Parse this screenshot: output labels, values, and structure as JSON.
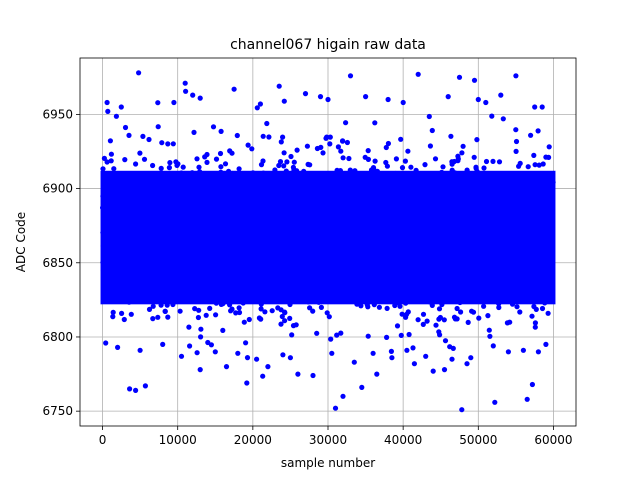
{
  "chart_data": {
    "type": "scatter",
    "title": "channel067 higain raw data",
    "xlabel": "sample number",
    "ylabel": "ADC Code",
    "xlim": [
      -3000,
      63000
    ],
    "ylim": [
      6740,
      6988
    ],
    "xticks": [
      0,
      10000,
      20000,
      30000,
      40000,
      50000,
      60000
    ],
    "yticks": [
      6750,
      6800,
      6850,
      6900,
      6950
    ],
    "grid": true,
    "marker_color": "#0000ff",
    "series": [
      {
        "n_samples": 60000,
        "x_range": [
          0,
          59999
        ],
        "dense_band": [
          6812,
          6922
        ],
        "points": [
          [
            4800,
            6978
          ],
          [
            11000,
            6971
          ],
          [
            23500,
            6969
          ],
          [
            33000,
            6976
          ],
          [
            42000,
            6977
          ],
          [
            47500,
            6975
          ],
          [
            49500,
            6973
          ],
          [
            55000,
            6976
          ],
          [
            31000,
            6752
          ],
          [
            47800,
            6751
          ],
          [
            52200,
            6756
          ],
          [
            3600,
            6765
          ],
          [
            4400,
            6764
          ],
          [
            5700,
            6767
          ],
          [
            32000,
            6760
          ],
          [
            34500,
            6766
          ],
          [
            19200,
            6769
          ],
          [
            56500,
            6758
          ],
          [
            57200,
            6768
          ],
          [
            26000,
            6775
          ],
          [
            28000,
            6774
          ],
          [
            36500,
            6775
          ],
          [
            44000,
            6777
          ],
          [
            45500,
            6778
          ],
          [
            48500,
            6782
          ],
          [
            13000,
            6778
          ],
          [
            16500,
            6780
          ],
          [
            22000,
            6780
          ],
          [
            12000,
            6963
          ],
          [
            13000,
            6961
          ],
          [
            17500,
            6967
          ],
          [
            21000,
            6957
          ],
          [
            27000,
            6964
          ],
          [
            35000,
            6962
          ],
          [
            38000,
            6960
          ],
          [
            51000,
            6958
          ],
          [
            53000,
            6963
          ],
          [
            57500,
            6955
          ],
          [
            58500,
            6955
          ],
          [
            2500,
            6955
          ],
          [
            9500,
            6958
          ],
          [
            600,
            6958
          ],
          [
            700,
            6952
          ],
          [
            29000,
            6962
          ],
          [
            30000,
            6960
          ],
          [
            40000,
            6958
          ],
          [
            46000,
            6962
          ],
          [
            50000,
            6960
          ],
          [
            8000,
            6795
          ],
          [
            2000,
            6793
          ],
          [
            15000,
            6790
          ],
          [
            24000,
            6788
          ],
          [
            38500,
            6786
          ],
          [
            43000,
            6787
          ],
          [
            54000,
            6790
          ],
          [
            59000,
            6795
          ],
          [
            10500,
            6787
          ],
          [
            20500,
            6785
          ],
          [
            30500,
            6789
          ],
          [
            33500,
            6783
          ],
          [
            40500,
            6791
          ],
          [
            46500,
            6785
          ],
          [
            52000,
            6794
          ],
          [
            5000,
            6791
          ],
          [
            18000,
            6789
          ],
          [
            25000,
            6786
          ],
          [
            36000,
            6789
          ],
          [
            41500,
            6782
          ],
          [
            49000,
            6786
          ],
          [
            56000,
            6791
          ],
          [
            58000,
            6790
          ]
        ]
      }
    ]
  }
}
